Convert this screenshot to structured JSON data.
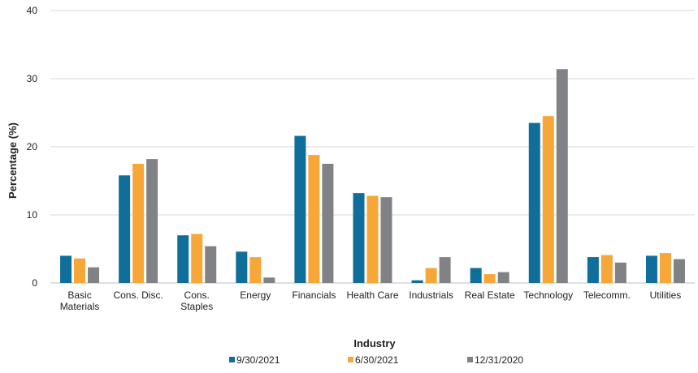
{
  "chart_data": {
    "type": "bar",
    "title": "",
    "xlabel": "Industry",
    "ylabel": "Percentage (%)",
    "ylim": [
      0,
      40
    ],
    "yticks": [
      0,
      10,
      20,
      30,
      40
    ],
    "grid": true,
    "legend_position": "bottom",
    "categories": [
      [
        "Basic",
        "Materials"
      ],
      [
        "Cons. Disc."
      ],
      [
        "Cons.",
        "Staples"
      ],
      [
        "Energy"
      ],
      [
        "Financials"
      ],
      [
        "Health Care"
      ],
      [
        "Industrials"
      ],
      [
        "Real Estate"
      ],
      [
        "Technology"
      ],
      [
        "Telecomm."
      ],
      [
        "Utilities"
      ]
    ],
    "series": [
      {
        "name": "9/30/2021",
        "color": "#0F6E9A",
        "values": [
          4.0,
          15.8,
          7.0,
          4.6,
          21.6,
          13.2,
          0.4,
          2.2,
          23.5,
          3.8,
          4.0
        ]
      },
      {
        "name": "6/30/2021",
        "color": "#F7A737",
        "values": [
          3.6,
          17.5,
          7.2,
          3.8,
          18.8,
          12.8,
          2.2,
          1.3,
          24.5,
          4.1,
          4.4
        ]
      },
      {
        "name": "12/31/2020",
        "color": "#808285",
        "values": [
          2.3,
          18.2,
          5.4,
          0.8,
          17.5,
          12.6,
          3.8,
          1.6,
          31.4,
          3.0,
          3.5
        ]
      }
    ]
  }
}
